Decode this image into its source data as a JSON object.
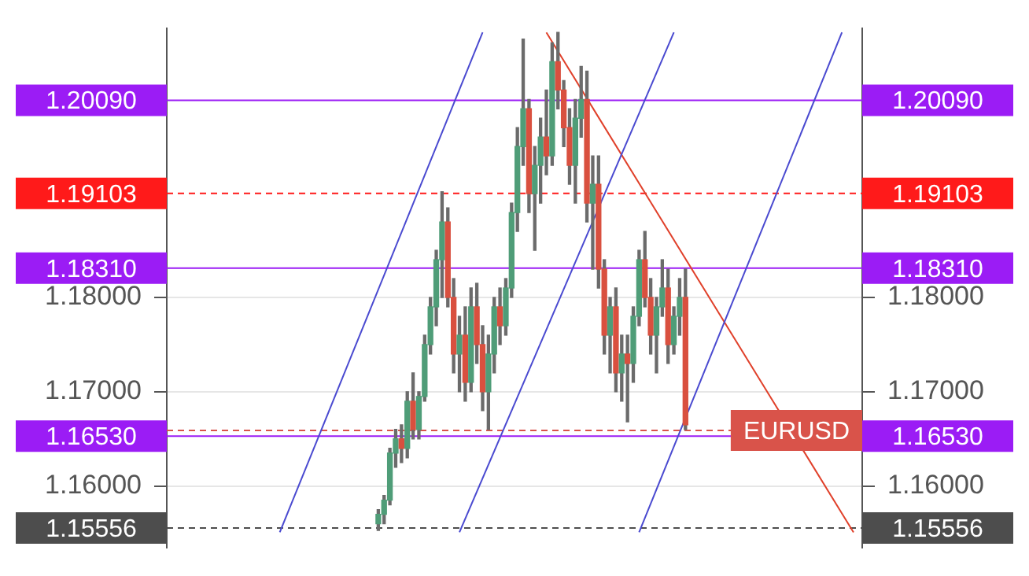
{
  "chart_data": {
    "type": "candlestick",
    "categories": [
      null,
      null,
      null,
      null,
      null,
      null,
      null,
      null,
      null,
      null,
      null,
      null,
      null,
      null,
      null,
      null,
      null,
      null,
      null,
      null,
      null,
      null,
      null,
      null,
      null,
      null,
      null,
      null,
      null,
      null,
      null,
      null,
      null,
      null,
      null,
      null,
      null,
      null,
      null,
      null,
      null,
      null,
      null,
      null,
      null,
      null,
      null,
      null,
      null,
      null,
      null,
      null,
      null,
      null,
      null,
      null,
      null,
      null,
      null,
      null,
      null,
      null,
      null,
      null,
      null,
      null,
      null,
      null,
      null,
      null,
      null,
      null,
      null,
      null,
      null,
      null,
      null,
      null,
      null,
      null,
      null,
      null,
      null,
      null,
      null,
      null,
      null,
      null,
      null,
      null,
      null,
      null,
      null,
      null,
      null,
      null,
      null,
      null,
      null,
      null,
      null,
      null,
      null,
      null,
      null,
      null,
      null,
      null,
      null,
      null,
      null,
      null,
      null,
      null,
      null,
      null,
      null,
      null,
      null,
      null
    ],
    "ohlc": [
      null,
      null,
      null,
      null,
      null,
      null,
      null,
      null,
      null,
      null,
      null,
      null,
      null,
      null,
      null,
      null,
      null,
      null,
      null,
      null,
      null,
      null,
      null,
      null,
      null,
      null,
      null,
      null,
      null,
      null,
      null,
      null,
      null,
      null,
      null,
      null,
      [
        1.156,
        1.1575,
        1.1553,
        1.157
      ],
      [
        1.157,
        1.159,
        1.156,
        1.1585
      ],
      [
        1.1585,
        1.164,
        1.158,
        1.1635
      ],
      [
        1.1635,
        1.166,
        1.162,
        1.165
      ],
      [
        1.165,
        1.1665,
        1.1625,
        1.164
      ],
      [
        1.164,
        1.17,
        1.163,
        1.169
      ],
      [
        1.169,
        1.172,
        1.165,
        1.166
      ],
      [
        1.166,
        1.17,
        1.165,
        1.1695
      ],
      [
        1.1695,
        1.176,
        1.169,
        1.175
      ],
      [
        1.175,
        1.18,
        1.174,
        1.179
      ],
      [
        1.179,
        1.185,
        1.177,
        1.184
      ],
      [
        1.184,
        1.1912,
        1.18,
        1.188
      ],
      [
        1.188,
        1.1895,
        1.179,
        1.18
      ],
      [
        1.18,
        1.182,
        1.172,
        1.174
      ],
      [
        1.174,
        1.178,
        1.17,
        1.176
      ],
      [
        1.176,
        1.179,
        1.169,
        1.171
      ],
      [
        1.171,
        1.181,
        1.17,
        1.179
      ],
      [
        1.179,
        1.1815,
        1.173,
        1.175
      ],
      [
        1.175,
        1.177,
        1.168,
        1.17
      ],
      [
        1.17,
        1.176,
        1.166,
        1.174
      ],
      [
        1.174,
        1.18,
        1.172,
        1.179
      ],
      [
        1.179,
        1.181,
        1.175,
        1.177
      ],
      [
        1.177,
        1.182,
        1.176,
        1.181
      ],
      [
        1.181,
        1.19,
        1.18,
        1.189
      ],
      [
        1.189,
        1.198,
        1.187,
        1.196
      ],
      [
        1.196,
        1.2074,
        1.194,
        1.2
      ],
      [
        1.2,
        1.201,
        1.189,
        1.191
      ],
      [
        1.191,
        1.196,
        1.185,
        1.194
      ],
      [
        1.194,
        1.199,
        1.19,
        1.197
      ],
      [
        1.197,
        1.202,
        1.193,
        1.195
      ],
      [
        1.195,
        1.207,
        1.194,
        1.205
      ],
      [
        1.205,
        1.2081,
        1.2,
        1.202
      ],
      [
        1.202,
        1.203,
        1.196,
        1.198
      ],
      [
        1.198,
        1.2,
        1.192,
        1.194
      ],
      [
        1.194,
        1.201,
        1.19,
        1.199
      ],
      [
        1.199,
        1.2045,
        1.197,
        1.201
      ],
      [
        1.201,
        1.204,
        1.188,
        1.19
      ],
      [
        1.19,
        1.195,
        1.183,
        1.192
      ],
      [
        1.192,
        1.195,
        1.181,
        1.183
      ],
      [
        1.183,
        1.184,
        1.174,
        1.176
      ],
      [
        1.176,
        1.18,
        1.172,
        1.179
      ],
      [
        1.179,
        1.181,
        1.17,
        1.172
      ],
      [
        1.172,
        1.176,
        1.169,
        1.174
      ],
      [
        1.174,
        1.176,
        1.1668,
        1.173
      ],
      [
        1.173,
        1.179,
        1.171,
        1.178
      ],
      [
        1.178,
        1.185,
        1.177,
        1.184
      ],
      [
        1.184,
        1.187,
        1.179,
        1.18
      ],
      [
        1.18,
        1.182,
        1.174,
        1.176
      ],
      [
        1.176,
        1.18,
        1.172,
        1.179
      ],
      [
        1.179,
        1.184,
        1.178,
        1.181
      ],
      [
        1.181,
        1.183,
        1.173,
        1.175
      ],
      [
        1.175,
        1.179,
        1.174,
        1.178
      ],
      [
        1.178,
        1.182,
        1.176,
        1.18
      ],
      [
        1.18,
        1.183,
        1.166,
        1.1665
      ],
      null,
      null,
      null,
      null,
      null,
      null,
      null,
      null,
      null,
      null,
      null,
      null,
      null,
      null,
      null,
      null,
      null,
      null,
      null,
      null,
      null,
      null,
      null,
      null,
      null,
      null,
      null,
      null,
      null,
      null
    ],
    "colors": [
      null,
      null,
      null,
      null,
      null,
      null,
      null,
      null,
      null,
      null,
      null,
      null,
      null,
      null,
      null,
      null,
      null,
      null,
      null,
      null,
      null,
      null,
      null,
      null,
      null,
      null,
      null,
      null,
      null,
      null,
      null,
      null,
      null,
      null,
      null,
      null,
      "#4f9d78",
      "#4f9d78",
      "#4f9d78",
      "#4f9d78",
      "#d9503f",
      "#4f9d78",
      "#d9503f",
      "#4f9d78",
      "#4f9d78",
      "#4f9d78",
      "#4f9d78",
      "#4f9d78",
      "#d9503f",
      "#d9503f",
      "#4f9d78",
      "#d9503f",
      "#4f9d78",
      "#d9503f",
      "#d9503f",
      "#4f9d78",
      "#4f9d78",
      "#d9503f",
      "#4f9d78",
      "#4f9d78",
      "#4f9d78",
      "#4f9d78",
      "#d9503f",
      "#4f9d78",
      "#4f9d78",
      "#d9503f",
      "#4f9d78",
      "#d9503f",
      "#d9503f",
      "#d9503f",
      "#4f9d78",
      "#4f9d78",
      "#d9503f",
      "#4f9d78",
      "#d9503f",
      "#d9503f",
      "#4f9d78",
      "#d9503f",
      "#4f9d78",
      "#d9503f",
      "#4f9d78",
      "#4f9d78",
      "#d9503f",
      "#d9503f",
      "#4f9d78",
      "#4f9d78",
      "#d9503f",
      "#4f9d78",
      "#4f9d78",
      "#d9503f",
      null,
      null,
      null,
      null,
      null,
      null,
      null,
      null,
      null,
      null,
      null,
      null,
      null,
      null,
      null,
      null,
      null,
      null,
      null,
      null,
      null,
      null,
      null,
      null,
      null,
      null,
      null,
      null,
      null,
      null
    ],
    "series": [
      {
        "type": "line",
        "color": "#4a4ad0",
        "values": [
          null,
          null,
          null,
          null,
          null,
          null,
          null,
          null,
          null,
          null,
          null,
          null,
          null,
          null,
          null,
          null,
          null,
          null,
          null,
          1.1551,
          null,
          null,
          null,
          null,
          null,
          null,
          null,
          null,
          null,
          null,
          null,
          null,
          null,
          null,
          null,
          null,
          null,
          null,
          null,
          null,
          null,
          null,
          null,
          null,
          null,
          null,
          null,
          null,
          null,
          null,
          null,
          null,
          null,
          null,
          1.2081,
          null,
          null,
          null,
          null,
          null,
          null,
          null,
          null,
          null,
          null,
          null,
          null,
          null,
          null,
          null,
          null,
          null,
          null,
          null,
          null,
          null,
          null,
          null,
          null,
          null,
          null,
          null,
          null,
          null,
          null,
          null,
          null,
          null,
          null,
          null,
          null,
          null,
          null,
          null,
          null,
          null,
          null,
          null,
          null,
          null,
          null,
          null,
          null,
          null,
          null,
          null,
          null,
          null,
          null,
          null,
          null,
          null,
          null,
          null,
          null,
          null,
          null,
          null,
          null,
          null
        ]
      },
      {
        "type": "line",
        "color": "#4a4ad0",
        "values": [
          null,
          null,
          null,
          null,
          null,
          null,
          null,
          null,
          null,
          null,
          null,
          null,
          null,
          null,
          null,
          null,
          null,
          null,
          null,
          null,
          null,
          null,
          null,
          null,
          null,
          null,
          null,
          null,
          null,
          null,
          null,
          null,
          null,
          null,
          null,
          null,
          null,
          null,
          null,
          null,
          null,
          null,
          null,
          null,
          null,
          null,
          null,
          null,
          null,
          null,
          1.1551,
          null,
          null,
          null,
          null,
          null,
          null,
          null,
          null,
          null,
          null,
          null,
          null,
          null,
          null,
          null,
          null,
          null,
          null,
          null,
          null,
          null,
          null,
          null,
          null,
          null,
          null,
          null,
          null,
          null,
          null,
          null,
          null,
          null,
          null,
          null,
          null,
          1.2081,
          null,
          null,
          null,
          null,
          null,
          null,
          null,
          null,
          null,
          null,
          null,
          null,
          null,
          null,
          null,
          null,
          null,
          null,
          null,
          null,
          null,
          null,
          null,
          null,
          null,
          null,
          null,
          null,
          null,
          null,
          null,
          null
        ]
      },
      {
        "type": "line",
        "color": "#4a4ad0",
        "values": [
          null,
          null,
          null,
          null,
          null,
          null,
          null,
          null,
          null,
          null,
          null,
          null,
          null,
          null,
          null,
          null,
          null,
          null,
          null,
          null,
          null,
          null,
          null,
          null,
          null,
          null,
          null,
          null,
          null,
          null,
          null,
          null,
          null,
          null,
          null,
          null,
          null,
          null,
          null,
          null,
          null,
          null,
          null,
          null,
          null,
          null,
          null,
          null,
          null,
          null,
          null,
          null,
          null,
          null,
          null,
          null,
          null,
          null,
          null,
          null,
          null,
          null,
          null,
          null,
          null,
          null,
          null,
          null,
          null,
          null,
          null,
          null,
          null,
          null,
          null,
          null,
          null,
          null,
          null,
          null,
          null,
          1.1551,
          null,
          null,
          null,
          null,
          null,
          null,
          null,
          null,
          null,
          null,
          null,
          null,
          null,
          null,
          null,
          null,
          null,
          null,
          null,
          null,
          null,
          null,
          null,
          null,
          null,
          null,
          null,
          null,
          null,
          null,
          null,
          null,
          null,
          null,
          1.2081,
          null,
          null,
          null
        ]
      },
      {
        "type": "line",
        "color": "#e0402a",
        "values": [
          null,
          null,
          null,
          null,
          null,
          null,
          null,
          null,
          null,
          null,
          null,
          null,
          null,
          null,
          null,
          null,
          null,
          null,
          null,
          null,
          null,
          null,
          null,
          null,
          null,
          null,
          null,
          null,
          null,
          null,
          null,
          null,
          null,
          null,
          null,
          null,
          null,
          null,
          null,
          null,
          null,
          null,
          null,
          null,
          null,
          null,
          null,
          null,
          null,
          null,
          null,
          null,
          null,
          null,
          null,
          null,
          null,
          null,
          null,
          null,
          null,
          null,
          null,
          null,
          null,
          1.2081,
          null,
          null,
          null,
          null,
          null,
          null,
          null,
          null,
          null,
          null,
          null,
          null,
          null,
          null,
          null,
          null,
          null,
          null,
          null,
          null,
          null,
          null,
          null,
          null,
          null,
          null,
          null,
          null,
          null,
          null,
          null,
          null,
          null,
          null,
          null,
          null,
          null,
          null,
          null,
          null,
          null,
          null,
          null,
          null,
          null,
          null,
          null,
          null,
          null,
          null,
          null,
          null,
          1.1551,
          null
        ]
      }
    ],
    "ylim": [
      1.1535,
      1.2085
    ],
    "yticks": [
      {
        "value": 1.16,
        "label": "1.16000"
      },
      {
        "value": 1.17,
        "label": "1.17000"
      },
      {
        "value": 1.18,
        "label": "1.18000"
      }
    ],
    "y2lim": [
      1.1535,
      1.2085
    ],
    "y2ticks": [
      {
        "value": 1.16,
        "label": "1.16000"
      },
      {
        "value": 1.17,
        "label": "1.17000"
      },
      {
        "value": 1.18,
        "label": "1.18000"
      }
    ],
    "tick_labels": "y",
    "grid": "y",
    "ref_lines": [
      {
        "axis": "y",
        "value": 1.2009,
        "label": "1.20090",
        "color": "#9b1cf5"
      },
      {
        "axis": "y",
        "value": 1.19103,
        "label": "1.19103",
        "color": "#ff1a1a",
        "line_style": "dashed"
      },
      {
        "axis": "y",
        "value": 1.1831,
        "label": "1.18310",
        "color": "#9b1cf5"
      },
      {
        "axis": "y",
        "value": 1.1653,
        "label": "1.16530",
        "color": "#9b1cf5"
      },
      {
        "axis": "y",
        "value": 1.15556,
        "label": "1.15556",
        "color": "#4d4d4d",
        "line_style": "dashed"
      },
      {
        "axis": "y",
        "value": 1.1659,
        "color": "#d9534a",
        "line_style": "dashed"
      }
    ],
    "annotations": [
      {
        "text": "EURUSD",
        "y": 1.1659
      }
    ]
  }
}
